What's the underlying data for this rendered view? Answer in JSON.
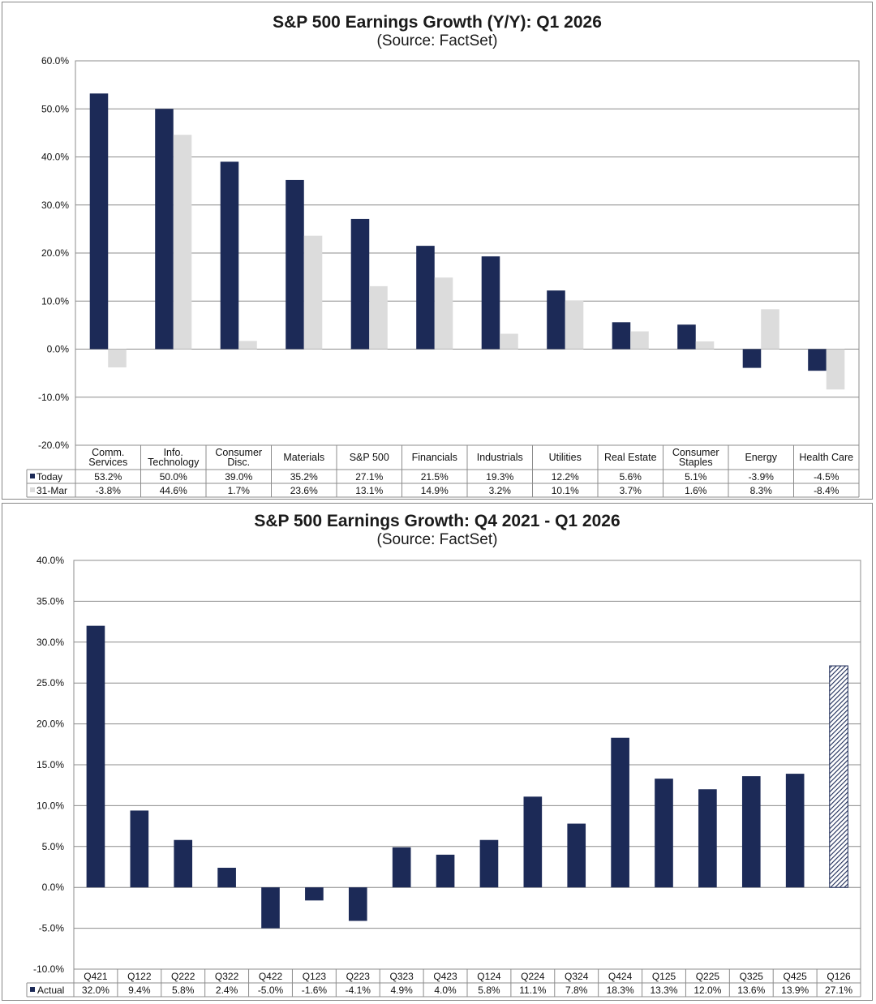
{
  "colors": {
    "today": "#1c2a57",
    "prior": "#dcdcdc",
    "grid": "#8c8c8c",
    "hatch": "#1c2a57"
  },
  "chart_data": [
    {
      "type": "bar",
      "title": "S&P 500 Earnings Growth (Y/Y): Q1 2026",
      "subtitle": "(Source: FactSet)",
      "categories": [
        [
          "Comm.",
          "Services"
        ],
        [
          "Info.",
          "Technology"
        ],
        [
          "Consumer",
          "Disc."
        ],
        [
          "Materials"
        ],
        [
          "S&P 500"
        ],
        [
          "Financials"
        ],
        [
          "Industrials"
        ],
        [
          "Utilities"
        ],
        [
          "Real Estate"
        ],
        [
          "Consumer",
          "Staples"
        ],
        [
          "Energy"
        ],
        [
          "Health Care"
        ]
      ],
      "series": [
        {
          "name": "Today",
          "values": [
            53.2,
            50.0,
            39.0,
            35.2,
            27.1,
            21.5,
            19.3,
            12.2,
            5.6,
            5.1,
            -3.9,
            -4.5
          ],
          "labels": [
            "53.2%",
            "50.0%",
            "39.0%",
            "35.2%",
            "27.1%",
            "21.5%",
            "19.3%",
            "12.2%",
            "5.6%",
            "5.1%",
            "-3.9%",
            "-4.5%"
          ]
        },
        {
          "name": "31-Mar",
          "values": [
            -3.8,
            44.6,
            1.7,
            23.6,
            13.1,
            14.9,
            3.2,
            10.1,
            3.7,
            1.6,
            8.3,
            -8.4
          ],
          "labels": [
            "-3.8%",
            "44.6%",
            "1.7%",
            "23.6%",
            "13.1%",
            "14.9%",
            "3.2%",
            "10.1%",
            "3.7%",
            "1.6%",
            "8.3%",
            "-8.4%"
          ]
        }
      ],
      "ylim": [
        -20,
        60
      ],
      "yticks": [
        "60.0%",
        "50.0%",
        "40.0%",
        "30.0%",
        "20.0%",
        "10.0%",
        "0.0%",
        "-10.0%",
        "-20.0%"
      ],
      "grid": true,
      "legend": "data table below chart"
    },
    {
      "type": "bar",
      "title": "S&P 500 Earnings Growth: Q4 2021 - Q1 2026",
      "subtitle": "(Source: FactSet)",
      "categories": [
        "Q421",
        "Q122",
        "Q222",
        "Q322",
        "Q422",
        "Q123",
        "Q223",
        "Q323",
        "Q423",
        "Q124",
        "Q224",
        "Q324",
        "Q424",
        "Q125",
        "Q225",
        "Q325",
        "Q425",
        "Q126"
      ],
      "series": [
        {
          "name": "Actual",
          "values": [
            32.0,
            9.4,
            5.8,
            2.4,
            -5.0,
            -1.6,
            -4.1,
            4.9,
            4.0,
            5.8,
            11.1,
            7.8,
            18.3,
            13.3,
            12.0,
            13.6,
            13.9,
            27.1
          ],
          "labels": [
            "32.0%",
            "9.4%",
            "5.8%",
            "2.4%",
            "-5.0%",
            "-1.6%",
            "-4.1%",
            "4.9%",
            "4.0%",
            "5.8%",
            "11.1%",
            "7.8%",
            "18.3%",
            "13.3%",
            "12.0%",
            "13.6%",
            "13.9%",
            "27.1%"
          ]
        }
      ],
      "hatched_last": true,
      "ylim": [
        -10,
        40
      ],
      "yticks": [
        "40.0%",
        "35.0%",
        "30.0%",
        "25.0%",
        "20.0%",
        "15.0%",
        "10.0%",
        "5.0%",
        "0.0%",
        "-5.0%",
        "-10.0%"
      ],
      "grid": true,
      "legend": "data table below chart"
    }
  ]
}
